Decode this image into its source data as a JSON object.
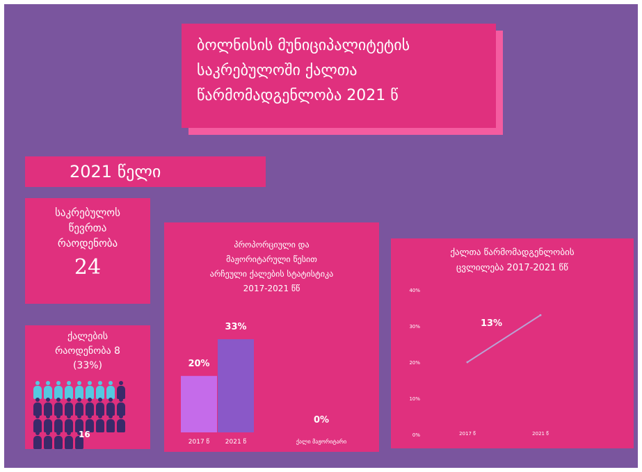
{
  "title": {
    "line1": "ბოლნისის მუნიციპალიტეტის",
    "line2": "საკრებულოში ქალთა",
    "line3": "წარმომადგენლობა 2021 წ"
  },
  "year_label": "2021 წელი",
  "members": {
    "line1": "საკრებულოს",
    "line2": "წევრთა",
    "line3": "რაოდენობა",
    "count": "24"
  },
  "women": {
    "line1": "ქალების",
    "line2": "რაოდენობა 8",
    "line3": "(33%)",
    "men_count": "16",
    "women_number": 8,
    "total": 24,
    "colors": {
      "women": "#55c9e0",
      "men": "#3a2a6a"
    },
    "icon": "person-icon"
  },
  "chart_data": [
    {
      "type": "bar",
      "title_lines": [
        "პროპორციული და",
        "მაჟორიტარული წესით",
        "არჩეული ქალების სტატისტიკა",
        "2017-2021 წწ"
      ],
      "categories": [
        "2017 წ",
        "2021 წ",
        "ქალი მაჟორიტარი"
      ],
      "values": [
        20,
        33,
        0
      ],
      "data_labels": [
        "20%",
        "33%",
        "0%"
      ],
      "colors": [
        "#c56bea",
        "#8a58c8",
        "#8a58c8"
      ],
      "ylim": [
        0,
        33
      ]
    },
    {
      "type": "line",
      "title_lines": [
        "ქალთა წარმომადგენლობის",
        "ცვლილება 2017-2021 წწ"
      ],
      "x": [
        "2017 წ",
        "2021 წ"
      ],
      "y": [
        20,
        33
      ],
      "annotation": "13%",
      "yticks": [
        "0%",
        "10%",
        "20%",
        "30%",
        "40%"
      ],
      "ylim": [
        0,
        40
      ],
      "line_color": "#b8a3d4"
    }
  ]
}
